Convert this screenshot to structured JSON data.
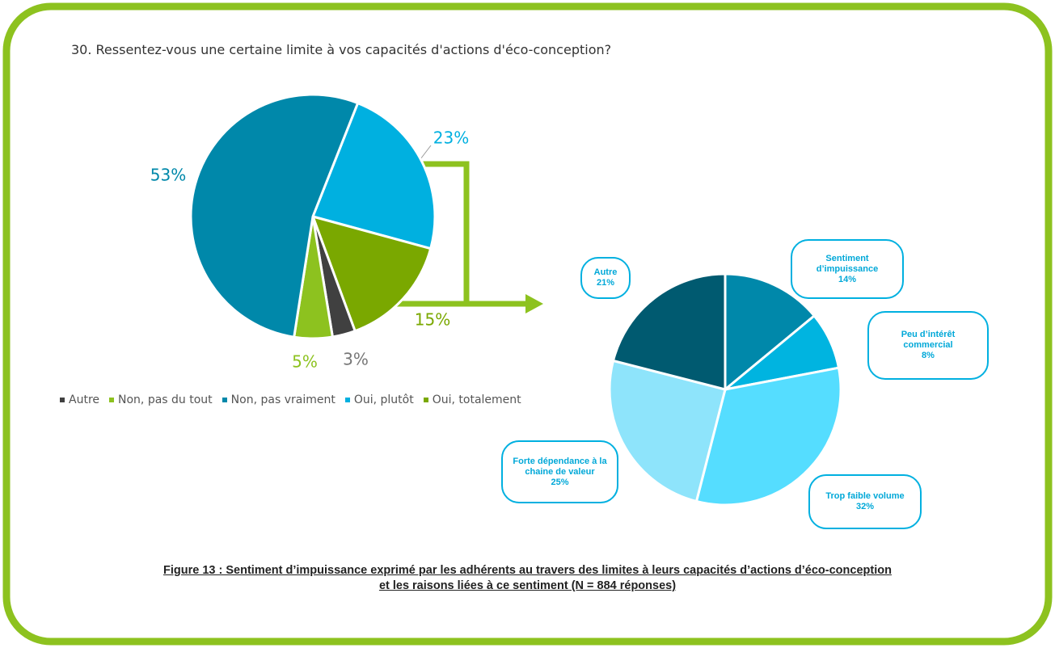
{
  "chart_data": [
    {
      "type": "pie",
      "title": "30.  Ressentez-vous une certaine limite à vos capacités d'actions d'éco-conception?",
      "categories": [
        "Autre",
        "Non, pas du tout",
        "Non, pas vraiment",
        "Oui, plutôt",
        "Oui, totalement"
      ],
      "values": [
        3,
        5,
        53,
        23,
        15
      ],
      "value_labels": [
        "3%",
        "5%",
        "53%",
        "23%",
        "15%"
      ],
      "colors": [
        "#404040",
        "#8dc21f",
        "#0088aa",
        "#00b0e0",
        "#7aa800"
      ],
      "legend": "bottom"
    },
    {
      "type": "pie",
      "categories": [
        "Sentiment d’impuissance",
        "Peu d’intérêt commercial",
        "Trop faible volume",
        "Forte dépendance à la chaine de valeur",
        "Autre"
      ],
      "values": [
        14,
        8,
        32,
        25,
        21
      ],
      "value_labels": [
        "14%",
        "8%",
        "32%",
        "25%",
        "21%"
      ],
      "colors": [
        "#0088aa",
        "#00b4e0",
        "#55ddff",
        "#8ee4fb",
        "#005a70"
      ]
    }
  ],
  "caption": [
    "Figure 13 : Sentiment d’impuissance exprimé par les adhérents au travers des limites à leurs capacités d’actions d’éco-conception",
    "et les raisons liées à ce sentiment (N = 884 réponses)"
  ]
}
